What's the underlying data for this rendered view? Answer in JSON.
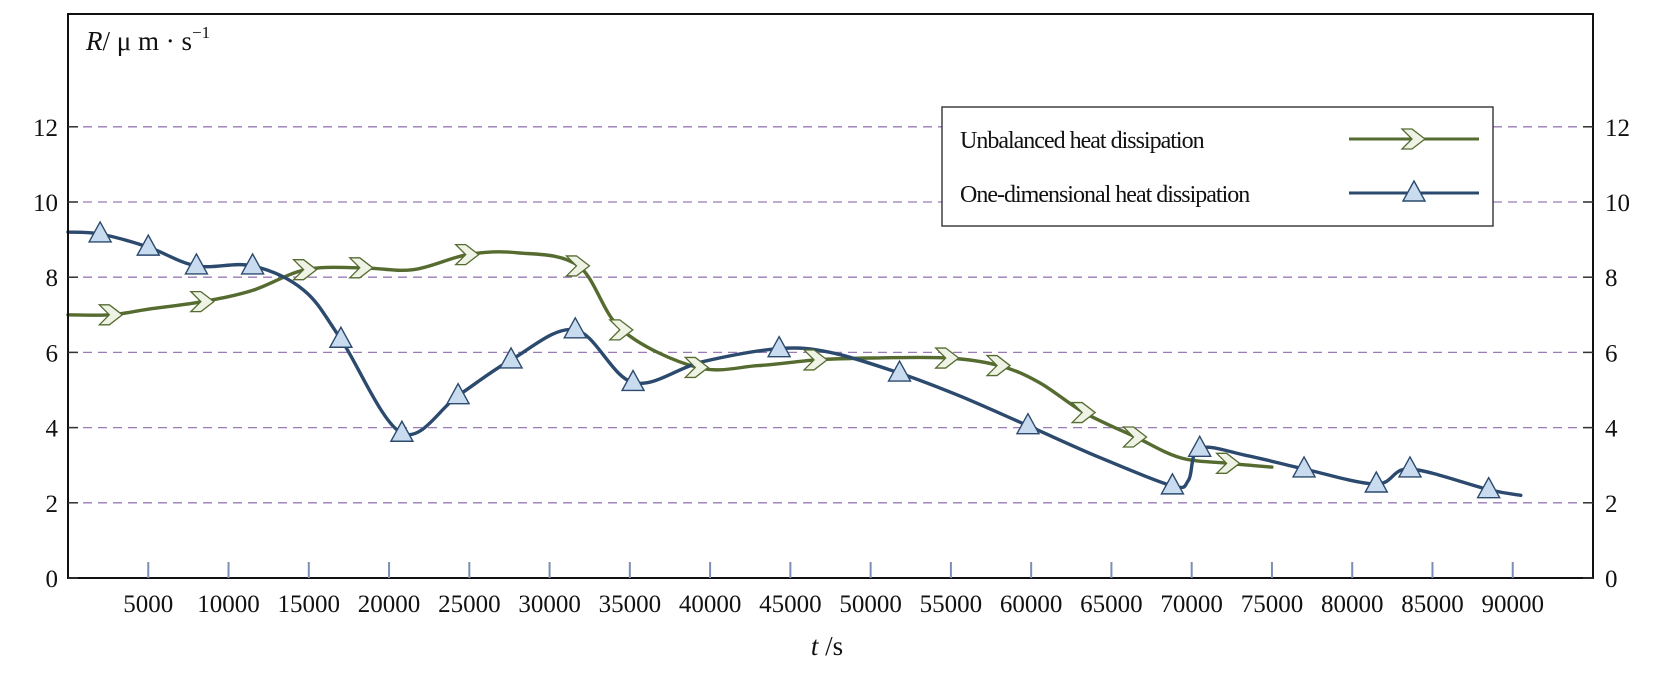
{
  "chart_data": {
    "type": "line",
    "xlabel_italic": "t",
    "xlabel_rest": " /s",
    "ylabel_italic": "R",
    "ylabel_rest": "/ μ m · s",
    "ylabel_sup": "−1",
    "xlim": [
      0,
      95000
    ],
    "ylim": [
      0,
      15
    ],
    "x_ticks": [
      5000,
      10000,
      15000,
      20000,
      25000,
      30000,
      35000,
      40000,
      45000,
      50000,
      55000,
      60000,
      65000,
      70000,
      75000,
      80000,
      85000,
      90000
    ],
    "y_ticks": [
      0,
      2,
      4,
      6,
      8,
      10,
      12
    ],
    "grid": "horizontal-dashed",
    "legend_position": "top-right",
    "series": [
      {
        "name": "Unbalanced heat dissipation",
        "color": "#556b2f",
        "marker": "chevron-right",
        "x": [
          0,
          2700,
          5000,
          8400,
          11500,
          14800,
          18300,
          21500,
          24900,
          28000,
          31800,
          34500,
          39200,
          43000,
          46600,
          50000,
          54800,
          58000,
          60500,
          63300,
          66500,
          69300,
          72300,
          75000
        ],
        "y": [
          7.0,
          7.0,
          7.15,
          7.35,
          7.65,
          8.2,
          8.25,
          8.2,
          8.6,
          8.65,
          8.3,
          6.6,
          5.6,
          5.65,
          5.8,
          5.85,
          5.85,
          5.65,
          5.2,
          4.4,
          3.75,
          3.2,
          3.05,
          2.95
        ]
      },
      {
        "name": "One-dimensional heat dissipation",
        "color": "#2b4a6e",
        "marker": "triangle",
        "x": [
          0,
          2000,
          5000,
          8000,
          11500,
          14700,
          17000,
          20800,
          24300,
          27600,
          31600,
          35200,
          39500,
          44300,
          47500,
          51800,
          55500,
          59800,
          64300,
          68800,
          69800,
          70500,
          73500,
          77000,
          81500,
          83600,
          88500,
          90500
        ],
        "y": [
          9.2,
          9.15,
          8.8,
          8.3,
          8.3,
          7.65,
          6.35,
          3.85,
          4.85,
          5.8,
          6.6,
          5.2,
          5.75,
          6.1,
          6.0,
          5.45,
          4.85,
          4.05,
          3.2,
          2.45,
          2.6,
          3.45,
          3.25,
          2.9,
          2.5,
          2.9,
          2.35,
          2.2
        ]
      }
    ],
    "marker_x": [
      [
        2700,
        8400,
        14800,
        18300,
        24900,
        31800,
        34500,
        39200,
        46600,
        54800,
        58000,
        63300,
        66500,
        72300
      ],
      [
        2000,
        5000,
        8000,
        11500,
        17000,
        20800,
        24300,
        27600,
        31600,
        35200,
        44300,
        51800,
        59800,
        68800,
        70500,
        77000,
        81500,
        83600,
        88500
      ]
    ]
  }
}
